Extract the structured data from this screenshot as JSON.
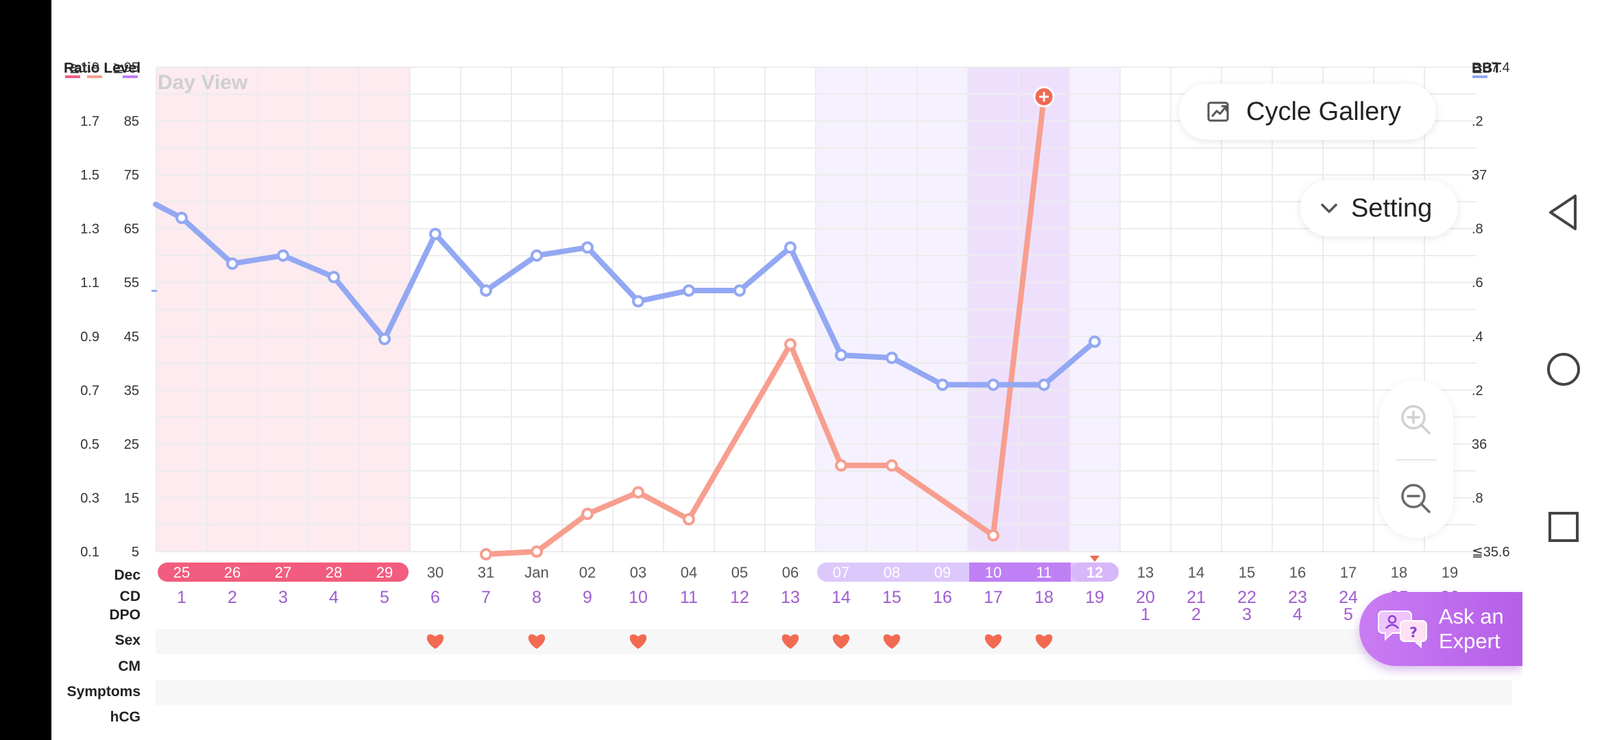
{
  "header": {
    "left_axis_title": "Ratio Level",
    "right_axis_title": "BBT",
    "view_label": "Day View"
  },
  "buttons": {
    "cycle_gallery": "Cycle Gallery",
    "setting": "Setting",
    "ask_expert_line1": "Ask an",
    "ask_expert_line2": "Expert"
  },
  "row_labels": {
    "month": "Dec",
    "cd": "CD",
    "dpo": "DPO",
    "sex": "Sex",
    "cm": "CM",
    "symptoms": "Symptoms",
    "hcg": "hCG"
  },
  "colors": {
    "period": "#f25c7f",
    "period_bg": "#fdebf0",
    "fertile_light": "#dcc8fb",
    "fertile_bg": "#f6f1fe",
    "ovulation": "#bf80f5",
    "ovulation_bg": "#eee0fd",
    "today": "#d7b6f9",
    "bbt_line": "#93a8f3",
    "ratio_line": "#f79e8f",
    "lh_spike_marker": "#f06a55",
    "heart": "#f36a52",
    "cd_text": "#a05ccf",
    "accent_purple": "#8a3fd1"
  },
  "chart_data": {
    "type": "line",
    "left_ratio_ticks": [
      "≧1.9",
      "1.7",
      "1.5",
      "1.3",
      "1.1",
      "0.9",
      "0.7",
      "0.5",
      "0.3",
      "0.1"
    ],
    "left_level_ticks": [
      "≧95",
      "85",
      "75",
      "65",
      "55",
      "45",
      "35",
      "25",
      "15",
      "5"
    ],
    "right_bbt_ticks": [
      "≧37.4",
      ".2",
      "37",
      ".8",
      ".6",
      ".4",
      ".2",
      "36",
      ".8",
      "≦35.6"
    ],
    "dates": [
      "25",
      "26",
      "27",
      "28",
      "29",
      "30",
      "31",
      "Jan",
      "02",
      "03",
      "04",
      "05",
      "06",
      "07",
      "08",
      "09",
      "10",
      "11",
      "12",
      "13",
      "14",
      "15",
      "16",
      "17",
      "18",
      "19"
    ],
    "date_types": [
      "period",
      "period",
      "period",
      "period",
      "period",
      "normal",
      "normal",
      "normal",
      "normal",
      "normal",
      "normal",
      "normal",
      "normal",
      "fertile",
      "fertile",
      "fertile",
      "ovulation",
      "ovulation",
      "today",
      "normal",
      "normal",
      "normal",
      "normal",
      "normal",
      "normal",
      "normal"
    ],
    "cycle_days": [
      "1",
      "2",
      "3",
      "4",
      "5",
      "6",
      "7",
      "8",
      "9",
      "10",
      "11",
      "12",
      "13",
      "14",
      "15",
      "16",
      "17",
      "18",
      "19",
      "20",
      "21",
      "22",
      "23",
      "24",
      "25",
      "26"
    ],
    "dpo": [
      "",
      "",
      "",
      "",
      "",
      "",
      "",
      "",
      "",
      "",
      "",
      "",
      "",
      "",
      "",
      "",
      "",
      "",
      "",
      "1",
      "2",
      "3",
      "4",
      "5",
      "",
      ""
    ],
    "sex": [
      false,
      false,
      false,
      false,
      false,
      true,
      false,
      true,
      false,
      true,
      false,
      false,
      true,
      true,
      true,
      false,
      true,
      true,
      false,
      false,
      false,
      false,
      false,
      false,
      false,
      false
    ],
    "series": [
      {
        "name": "BBT",
        "axis": "right",
        "values": [
          36.84,
          36.67,
          36.7,
          36.62,
          36.39,
          36.78,
          36.57,
          36.7,
          36.73,
          36.53,
          36.57,
          36.57,
          36.73,
          36.33,
          36.32,
          36.22,
          36.22,
          36.22,
          36.38,
          null,
          null,
          null,
          null,
          null,
          null,
          null
        ]
      },
      {
        "name": "Ratio",
        "axis": "left",
        "values": [
          null,
          null,
          null,
          null,
          null,
          null,
          0.09,
          0.1,
          0.24,
          0.32,
          0.22,
          null,
          0.87,
          0.42,
          0.42,
          null,
          0.16,
          1.79,
          null,
          null,
          null,
          null,
          null,
          null,
          null,
          null
        ]
      }
    ],
    "bbt_lead_in": 36.89,
    "ratio_range": [
      0.1,
      1.9
    ],
    "bbt_range": [
      35.6,
      37.4
    ],
    "lh_spike_index": 17,
    "today_index": 18
  }
}
